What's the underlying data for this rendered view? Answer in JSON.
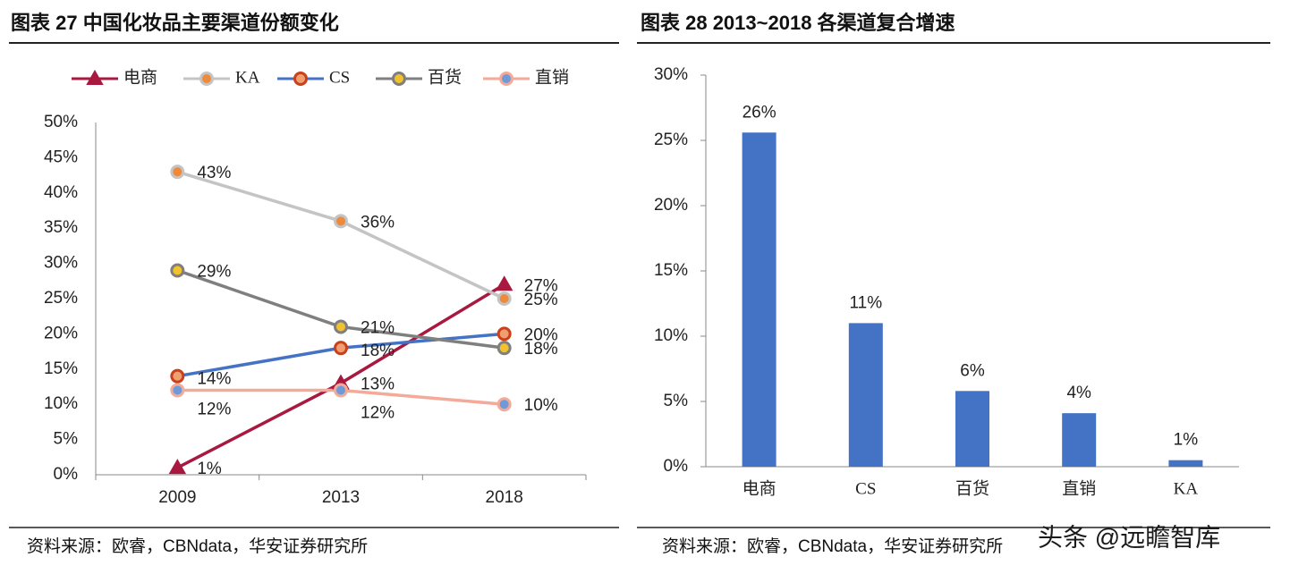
{
  "chart_data": [
    {
      "type": "line",
      "title": "图表 27 中国化妆品主要渠道份额变化",
      "source": "资料来源：欧睿，CBNdata，华安证券研究所",
      "categories": [
        "2009",
        "2013",
        "2018"
      ],
      "series": [
        {
          "name": "电商",
          "color": "#a8183f",
          "marker": "triangle",
          "marker_fill": "#a8183f",
          "values": [
            1,
            13,
            27
          ],
          "value_labels": [
            "1%",
            "13%",
            "27%"
          ]
        },
        {
          "name": "KA",
          "color": "#c4c4c4",
          "marker": "circle",
          "marker_fill": "#ee8a3c",
          "values": [
            43,
            36,
            25
          ],
          "value_labels": [
            "43%",
            "36%",
            "25%"
          ]
        },
        {
          "name": "CS",
          "color": "#4472c4",
          "marker": "circle",
          "marker_stroke": "#c8401c",
          "marker_fill": "#f0a070",
          "values": [
            14,
            18,
            20
          ],
          "value_labels": [
            "14%",
            "18%",
            "20%"
          ]
        },
        {
          "name": "百货",
          "color": "#7f7f7f",
          "marker": "circle",
          "marker_fill": "#f2c12e",
          "values": [
            29,
            21,
            18
          ],
          "value_labels": [
            "29%",
            "21%",
            "18%"
          ]
        },
        {
          "name": "直销",
          "color": "#f4aa98",
          "marker": "circle",
          "marker_fill": "#6f9ad8",
          "values": [
            12,
            12,
            10
          ],
          "value_labels": [
            "12%",
            "12%",
            "10%"
          ]
        }
      ],
      "ylim": [
        0,
        50
      ],
      "yticks": [
        {
          "value": 0,
          "label": "0%"
        },
        {
          "value": 5,
          "label": "5%"
        },
        {
          "value": 10,
          "label": "10%"
        },
        {
          "value": 15,
          "label": "15%"
        },
        {
          "value": 20,
          "label": "20%"
        },
        {
          "value": 25,
          "label": "25%"
        },
        {
          "value": 30,
          "label": "30%"
        },
        {
          "value": 35,
          "label": "35%"
        },
        {
          "value": 40,
          "label": "40%"
        },
        {
          "value": 45,
          "label": "45%"
        },
        {
          "value": 50,
          "label": "50%"
        }
      ],
      "legend": "top"
    },
    {
      "type": "bar",
      "title": "图表 28 2013~2018 各渠道复合增速",
      "source": "资料来源：欧睿，CBNdata，华安证券研究所",
      "categories": [
        "电商",
        "CS",
        "百货",
        "直销",
        "KA"
      ],
      "values": [
        25.6,
        11,
        5.8,
        4.1,
        0.5
      ],
      "value_labels": [
        "26%",
        "11%",
        "6%",
        "4%",
        "1%"
      ],
      "color": "#4472c4",
      "ylim": [
        0,
        30
      ],
      "yticks": [
        {
          "value": 0,
          "label": "0%"
        },
        {
          "value": 5,
          "label": "5%"
        },
        {
          "value": 10,
          "label": "10%"
        },
        {
          "value": 15,
          "label": "15%"
        },
        {
          "value": 20,
          "label": "20%"
        },
        {
          "value": 25,
          "label": "25%"
        },
        {
          "value": 30,
          "label": "30%"
        }
      ]
    }
  ],
  "watermark": "头条 @远瞻智库"
}
